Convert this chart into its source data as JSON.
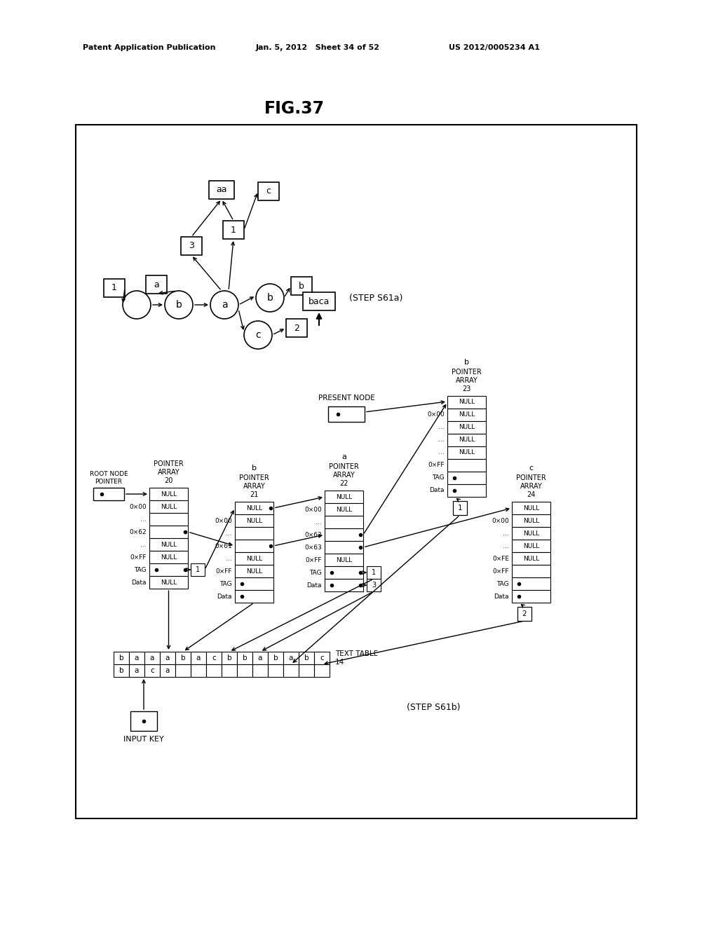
{
  "title": "FIG.37",
  "header_left": "Patent Application Publication",
  "header_mid": "Jan. 5, 2012   Sheet 34 of 52",
  "header_right": "US 2012/0005234 A1",
  "bg_color": "#ffffff",
  "step_s61a": "(STEP S61a)",
  "step_s61b": "(STEP S61b)",
  "input_key": "INPUT KEY",
  "present_node_label": "PRESENT NODE",
  "root_node_label": "ROOT NODE\nPOINTER",
  "pa20_label": "POINTER\nARRAY\n20",
  "pa21_label": "POINTER\nARRAY\n21",
  "pa22_label": "POINTER\nARRAY\n22",
  "pa23_label": "POINTER\nARRAY\n23",
  "pa24_label": "POINTER\nARRAY\n24",
  "text_table_label": "TEXT TABLE\n14"
}
